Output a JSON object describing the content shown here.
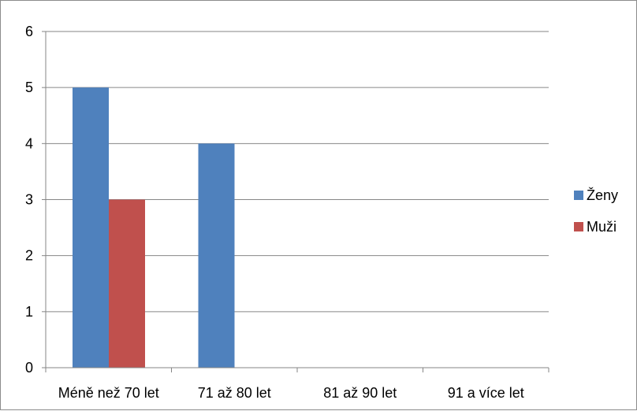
{
  "chart_data": {
    "type": "bar",
    "categories": [
      "Méně než 70 let",
      "71 až 80 let",
      "81 až 90 let",
      "91 a více let"
    ],
    "series": [
      {
        "name": "Ženy",
        "values": [
          5,
          4,
          0,
          0
        ],
        "color": "#4F81BD"
      },
      {
        "name": "Muži",
        "values": [
          3,
          0,
          0,
          0
        ],
        "color": "#C0504D"
      }
    ],
    "ylim": [
      0,
      6
    ],
    "yticks": [
      0,
      1,
      2,
      3,
      4,
      5,
      6
    ],
    "grid": true,
    "legend": "right"
  }
}
